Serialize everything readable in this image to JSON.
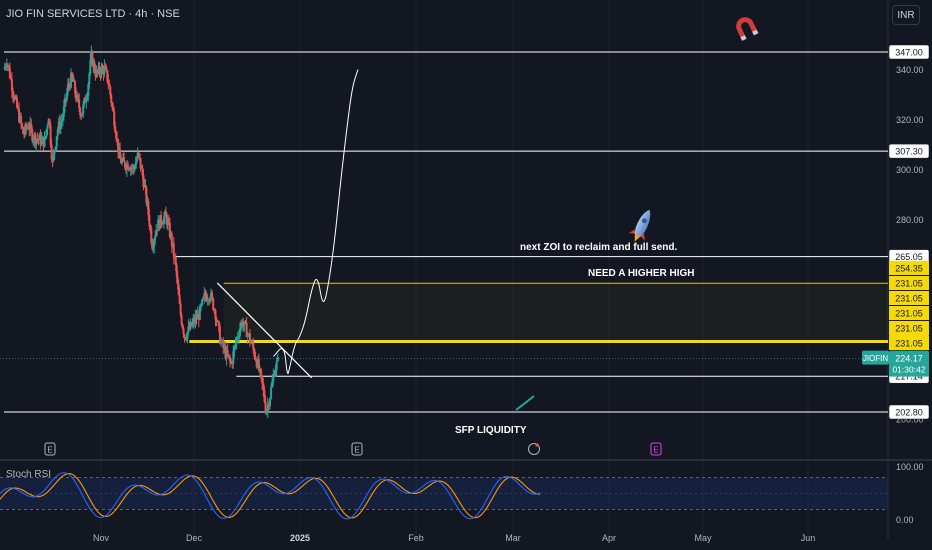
{
  "header": {
    "title": "JIO FIN SERVICES LTD · 4h · NSE",
    "currency_button": "INR"
  },
  "chart_data": {
    "type": "candlestick",
    "symbol": "JIOFIN",
    "price_axis": {
      "ylim": [
        195,
        350
      ],
      "ticks": [
        200,
        280,
        300,
        320,
        340
      ],
      "tick_labels": [
        "200.00",
        "280.00",
        "300.00",
        "320.00",
        "340.00"
      ]
    },
    "time_axis": {
      "labels": [
        {
          "text": "Nov",
          "bold": false
        },
        {
          "text": "Dec",
          "bold": false
        },
        {
          "text": "2025",
          "bold": true
        },
        {
          "text": "Feb",
          "bold": false
        },
        {
          "text": "Mar",
          "bold": false
        },
        {
          "text": "Apr",
          "bold": false
        },
        {
          "text": "May",
          "bold": false
        },
        {
          "text": "Jun",
          "bold": false
        }
      ]
    },
    "path": [
      [
        0,
        340
      ],
      [
        0.03,
        344
      ],
      [
        0.1,
        330
      ],
      [
        0.15,
        322
      ],
      [
        0.2,
        314
      ],
      [
        0.25,
        318
      ],
      [
        0.3,
        313
      ],
      [
        0.36,
        312
      ],
      [
        0.42,
        311
      ],
      [
        0.46,
        322
      ],
      [
        0.5,
        302
      ],
      [
        0.55,
        316
      ],
      [
        0.6,
        320
      ],
      [
        0.66,
        333
      ],
      [
        0.7,
        337
      ],
      [
        0.75,
        328
      ],
      [
        0.8,
        322
      ],
      [
        0.86,
        332
      ],
      [
        0.9,
        345
      ],
      [
        0.95,
        338
      ],
      [
        1.0,
        340
      ],
      [
        1.04,
        340
      ],
      [
        1.08,
        335
      ],
      [
        1.1,
        330
      ],
      [
        1.15,
        318
      ],
      [
        1.2,
        304
      ],
      [
        1.25,
        302
      ],
      [
        1.3,
        302
      ],
      [
        1.35,
        300
      ],
      [
        1.4,
        306
      ],
      [
        1.45,
        297
      ],
      [
        1.5,
        285
      ],
      [
        1.55,
        270
      ],
      [
        1.6,
        277
      ],
      [
        1.65,
        280
      ],
      [
        1.7,
        281
      ],
      [
        1.75,
        273
      ],
      [
        1.8,
        262
      ],
      [
        1.85,
        243
      ],
      [
        1.9,
        233
      ],
      [
        1.95,
        236
      ],
      [
        2.0,
        239
      ],
      [
        2.05,
        242
      ],
      [
        2.1,
        249
      ],
      [
        2.15,
        250
      ],
      [
        2.2,
        243
      ],
      [
        2.25,
        231
      ],
      [
        2.3,
        226
      ],
      [
        2.35,
        222
      ],
      [
        2.4,
        232
      ],
      [
        2.45,
        239
      ],
      [
        2.5,
        235
      ],
      [
        2.55,
        229
      ],
      [
        2.6,
        222
      ],
      [
        2.65,
        212
      ],
      [
        2.68,
        203
      ],
      [
        2.72,
        210
      ],
      [
        2.76,
        220
      ],
      [
        2.8,
        224
      ]
    ],
    "levels": [
      {
        "price": 347.0,
        "label": "347.00",
        "color": "#ffffff",
        "x_start": 0,
        "x_end": 9
      },
      {
        "price": 307.3,
        "label": "307.30",
        "color": "#ffffff",
        "x_start": 0,
        "x_end": 9
      },
      {
        "price": 265.05,
        "label": "265.05",
        "color": "#ffffff",
        "x_start": 1.8,
        "x_end": 9
      },
      {
        "price": 231.05,
        "label": "231.05",
        "color": "#f5d90a",
        "x_start": 1.95,
        "x_end": 9,
        "thick": true
      },
      {
        "price": 217.14,
        "label": "217.14",
        "color": "#ffffff",
        "x_start": 2.4,
        "x_end": 9
      },
      {
        "price": 202.8,
        "label": "202.80",
        "color": "#ffffff",
        "x_start": 0,
        "x_end": 9
      }
    ],
    "zone_labels": [
      "254.35",
      "231.05",
      "231.05",
      "231.05",
      "231.05",
      "231.05"
    ],
    "zone_top": 254.35,
    "current_price": {
      "symbol": "JIOFIN",
      "price": 224.17,
      "price_label": "224.17",
      "countdown": "01:30:42"
    },
    "annotations": {
      "zoi": "next ZOI to reclaim and full send.",
      "higher_high": "NEED A HIGHER HIGH",
      "liquidity": "SFP LIQUIDITY"
    },
    "trendline": {
      "from": [
        2.22,
        254.5
      ],
      "to": [
        3.1,
        216.5
      ]
    },
    "projection": [
      [
        2.75,
        225
      ],
      [
        2.85,
        230
      ],
      [
        2.88,
        217
      ],
      [
        2.9,
        220
      ],
      [
        2.95,
        230
      ],
      [
        3.0,
        233
      ],
      [
        3.05,
        240
      ],
      [
        3.1,
        252
      ],
      [
        3.15,
        258
      ],
      [
        3.2,
        244
      ],
      [
        3.25,
        255
      ],
      [
        3.3,
        272
      ],
      [
        3.35,
        295
      ],
      [
        3.4,
        315
      ],
      [
        3.45,
        333
      ],
      [
        3.5,
        340
      ]
    ],
    "stoch_rsi": {
      "name": "Stoch RSI",
      "upper": 80,
      "lower": 20,
      "tick_labels": [
        "100.00",
        "0.00"
      ]
    }
  }
}
